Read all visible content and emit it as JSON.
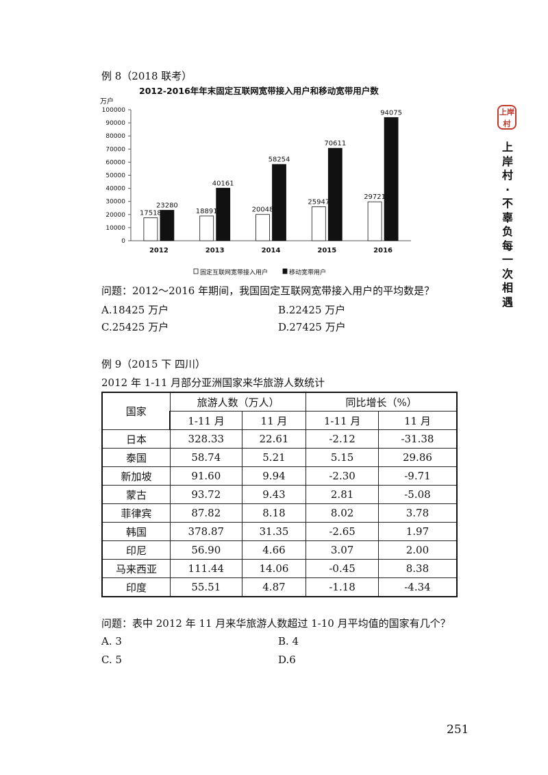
{
  "brand": {
    "seal_text": "上岸村",
    "slogan": "上岸村·不辜负每一次相遇"
  },
  "example8": {
    "heading": "例 8（2018 联考）",
    "question": "问题：2012～2016 年期间，我国固定互联网宽带接入用户的平均数是？",
    "options": {
      "a": "A.18425 万户",
      "b": "B.22425 万户",
      "c": "C.25425 万户",
      "d": "D.27425 万户"
    }
  },
  "chart_data": {
    "type": "bar",
    "title": "2012-2016年年末固定互联网宽带接入用户和移动宽带用户数",
    "ylabel": "万户",
    "xlabel": "",
    "categories": [
      "2012",
      "2013",
      "2014",
      "2015",
      "2016"
    ],
    "series": [
      {
        "name": "固定互联网宽带接入用户",
        "values": [
          17518,
          18891,
          20048,
          25947,
          29721
        ],
        "color": "#ffffff"
      },
      {
        "name": "移动宽带用户",
        "values": [
          23280,
          40161,
          58254,
          70611,
          94075
        ],
        "color": "#111111"
      }
    ],
    "ylim": [
      0,
      100000
    ],
    "yticks": [
      "0",
      "10000",
      "20000",
      "30000",
      "40000",
      "50000",
      "60000",
      "70000",
      "80000",
      "90000",
      "100000"
    ],
    "grid": false,
    "legend": "bottom"
  },
  "example9": {
    "heading": "例 9（2015 下  四川）",
    "table_title": "2012 年 1-11 月部分亚洲国家来华旅游人数统计",
    "headers": {
      "country": "国家",
      "visitors": "旅游人数（万人）",
      "growth": "同比增长（%）",
      "sub": [
        "1-11 月",
        "11 月",
        "1-11 月",
        "11 月"
      ]
    },
    "rows": [
      [
        "日本",
        "328.33",
        "22.61",
        "-2.12",
        "-31.38"
      ],
      [
        "泰国",
        "58.74",
        "5.21",
        "5.15",
        "29.86"
      ],
      [
        "新加坡",
        "91.60",
        "9.94",
        "-2.30",
        "-9.71"
      ],
      [
        "蒙古",
        "93.72",
        "9.43",
        "2.81",
        "-5.08"
      ],
      [
        "菲律宾",
        "87.82",
        "8.18",
        "8.02",
        "3.78"
      ],
      [
        "韩国",
        "378.87",
        "31.35",
        "-2.65",
        "1.97"
      ],
      [
        "印尼",
        "56.90",
        "4.66",
        "3.07",
        "2.00"
      ],
      [
        "马来西亚",
        "111.44",
        "14.06",
        "-0.45",
        "8.38"
      ],
      [
        "印度",
        "55.51",
        "4.87",
        "-1.18",
        "-4.34"
      ]
    ],
    "question": "问题：表中 2012 年 11 月来华旅游人数超过 1-10 月平均值的国家有几个？",
    "options": {
      "a": "A.  3",
      "b": "B.  4",
      "c": "C.  5",
      "d": "D.6"
    }
  },
  "page_number": "251"
}
